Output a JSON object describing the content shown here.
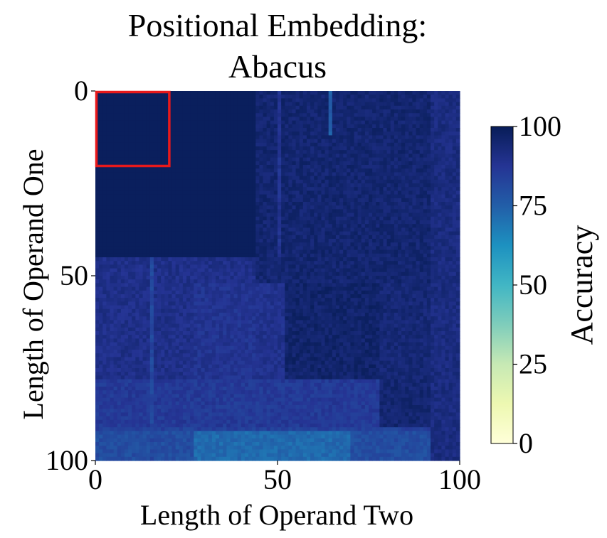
{
  "chart_data": {
    "type": "heatmap",
    "title_lines": [
      "Positional Embedding:",
      "Abacus"
    ],
    "xlabel": "Length of Operand Two",
    "ylabel": "Length of Operand One",
    "x_ticks": [
      0,
      50,
      100
    ],
    "y_ticks": [
      0,
      50,
      100
    ],
    "xlim": [
      0,
      100
    ],
    "ylim": [
      0,
      100
    ],
    "grid": false,
    "colorbar": {
      "label": "Accuracy",
      "ticks": [
        0,
        25,
        50,
        75,
        100
      ],
      "range": [
        0,
        100
      ],
      "colormap": "YlGnBu",
      "stops": [
        "#ffffd9",
        "#edf8b1",
        "#c7e9b4",
        "#7fcdbb",
        "#41b6c4",
        "#1d91c0",
        "#225ea8",
        "#253494",
        "#081d58"
      ]
    },
    "highlight_box": {
      "x_range": [
        0,
        20
      ],
      "y_range": [
        0,
        20
      ],
      "color": "#e8191b"
    },
    "regions": [
      {
        "x_range": [
          0,
          44
        ],
        "y_range": [
          0,
          45
        ],
        "accuracy": 99
      },
      {
        "x_range": [
          44,
          92
        ],
        "y_range": [
          0,
          52
        ],
        "accuracy": 95
      },
      {
        "x_range": [
          92,
          100
        ],
        "y_range": [
          0,
          100
        ],
        "accuracy": 92
      },
      {
        "x_range": [
          0,
          44
        ],
        "y_range": [
          45,
          78
        ],
        "accuracy": 90
      },
      {
        "x_range": [
          27,
          44
        ],
        "y_range": [
          52,
          78
        ],
        "accuracy": 88
      },
      {
        "x_range": [
          44,
          52
        ],
        "y_range": [
          52,
          78
        ],
        "accuracy": 89
      },
      {
        "x_range": [
          52,
          78
        ],
        "y_range": [
          52,
          78
        ],
        "accuracy": 96
      },
      {
        "x_range": [
          78,
          92
        ],
        "y_range": [
          52,
          78
        ],
        "accuracy": 94
      },
      {
        "x_range": [
          0,
          78
        ],
        "y_range": [
          78,
          91
        ],
        "accuracy": 86
      },
      {
        "x_range": [
          78,
          92
        ],
        "y_range": [
          78,
          91
        ],
        "accuracy": 95
      },
      {
        "x_range": [
          0,
          92
        ],
        "y_range": [
          91,
          100
        ],
        "accuracy": 80
      },
      {
        "x_range": [
          27,
          70
        ],
        "y_range": [
          92,
          100
        ],
        "accuracy": 72
      }
    ],
    "column_streaks": [
      {
        "x": 15,
        "y_range": [
          45,
          100
        ],
        "accuracy": 82
      },
      {
        "x": 50,
        "y_range": [
          0,
          45
        ],
        "accuracy": 88
      },
      {
        "x": 64,
        "y_range": [
          0,
          12
        ],
        "accuracy": 75
      }
    ],
    "row_streaks": [
      {
        "y": 91,
        "x_range": [
          0,
          92
        ],
        "accuracy": 84
      }
    ]
  },
  "colors": {
    "background": "#ffffff",
    "text": "#000000"
  }
}
